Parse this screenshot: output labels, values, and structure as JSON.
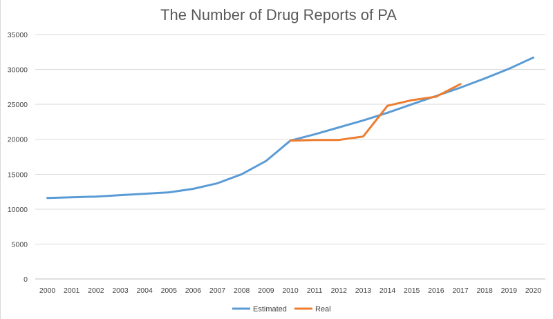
{
  "chart_data": {
    "type": "line",
    "title": "The Number of Drug Reports of PA",
    "xlabel": "",
    "ylabel": "",
    "x": [
      "2000",
      "2001",
      "2002",
      "2003",
      "2004",
      "2005",
      "2006",
      "2007",
      "2008",
      "2009",
      "2010",
      "2011",
      "2012",
      "2013",
      "2014",
      "2015",
      "2016",
      "2017",
      "2018",
      "2019",
      "2020"
    ],
    "ylim": [
      0,
      35000
    ],
    "yticks": [
      0,
      5000,
      10000,
      15000,
      20000,
      25000,
      30000,
      35000
    ],
    "ytick_labels": [
      "0",
      "5000",
      "10000",
      "15000",
      "20000",
      "25000",
      "30000",
      "35000"
    ],
    "grid": true,
    "legend_position": "bottom",
    "series": [
      {
        "name": "Estimated",
        "color": "#5B9BD5",
        "values": [
          11600,
          11700,
          11800,
          12000,
          12200,
          12400,
          12900,
          13700,
          15000,
          16900,
          19800,
          20700,
          21700,
          22700,
          23800,
          25000,
          26200,
          27400,
          28700,
          30100,
          31700
        ]
      },
      {
        "name": "Real",
        "color": "#ED7D31",
        "values": [
          null,
          null,
          null,
          null,
          null,
          null,
          null,
          null,
          null,
          null,
          19800,
          19900,
          19900,
          20400,
          24800,
          25600,
          26100,
          27900,
          null,
          null,
          null
        ]
      }
    ]
  }
}
